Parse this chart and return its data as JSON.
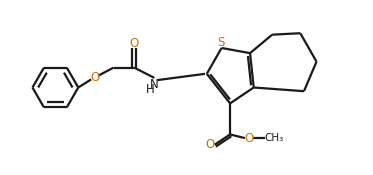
{
  "bg_color": "#ffffff",
  "line_color": "#1a1a1a",
  "heteroatom_color": "#c87000",
  "bond_width": 1.6,
  "fig_width": 3.73,
  "fig_height": 1.75,
  "dpi": 100,
  "xlim": [
    0,
    10
  ],
  "ylim": [
    0,
    4.7
  ]
}
